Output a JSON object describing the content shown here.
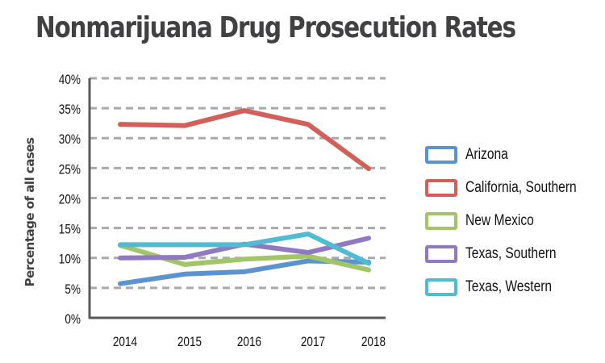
{
  "chart_data": {
    "type": "line",
    "title": "Nonmarijuana Drug Prosecution Rates",
    "xlabel": "",
    "ylabel": "Percentage of all cases",
    "x": [
      "2014",
      "2015",
      "2016",
      "2017",
      "2018"
    ],
    "ylim": [
      0,
      40
    ],
    "yticks": [
      0,
      5,
      10,
      15,
      20,
      25,
      30,
      35,
      40
    ],
    "ytick_labels": [
      "0%",
      "5%",
      "10%",
      "15%",
      "20%",
      "25%",
      "30%",
      "35%",
      "40%"
    ],
    "grid": true,
    "legend_position": "right",
    "series": [
      {
        "name": "Arizona",
        "color": "#5b93d0",
        "values": [
          5.7,
          7.3,
          7.7,
          9.5,
          9.3
        ]
      },
      {
        "name": "California, Southern",
        "color": "#d35f5b",
        "values": [
          32.3,
          32.1,
          34.6,
          32.3,
          24.9
        ]
      },
      {
        "name": "New Mexico",
        "color": "#a2c567",
        "values": [
          12.1,
          8.9,
          9.8,
          10.3,
          8.0
        ]
      },
      {
        "name": "Texas, Southern",
        "color": "#9079c0",
        "values": [
          10.0,
          10.1,
          12.3,
          10.9,
          13.3
        ]
      },
      {
        "name": "Texas, Western",
        "color": "#4fbcd3",
        "values": [
          12.2,
          12.2,
          12.2,
          14.0,
          9.1
        ]
      }
    ]
  }
}
